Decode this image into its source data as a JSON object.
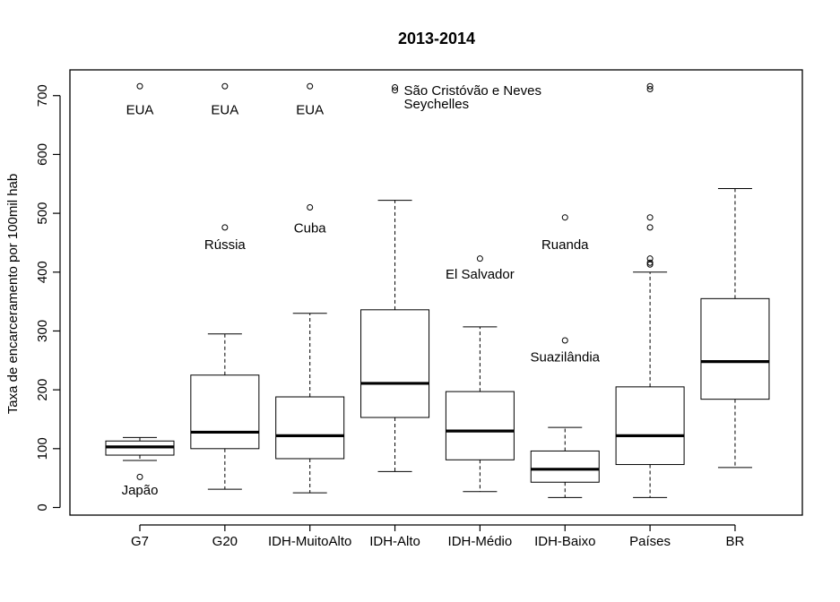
{
  "chart_data": {
    "type": "boxplot",
    "title": "2013-2014",
    "xlabel": "",
    "ylabel": "Taxa de encarceramento por 100mil hab",
    "ylim": [
      -12,
      716
    ],
    "yticks": [
      0,
      100,
      200,
      300,
      400,
      500,
      600,
      700
    ],
    "grid": false,
    "legend": "none",
    "categories": [
      "G7",
      "G20",
      "IDH-MuitoAlto",
      "IDH-Alto",
      "IDH-Médio",
      "IDH-Baixo",
      "Países",
      "BR"
    ],
    "boxes": [
      {
        "category": "G7",
        "whisker_low": 80,
        "q1": 89,
        "median": 103,
        "q3": 113,
        "whisker_high": 119,
        "outliers": [
          716,
          52
        ]
      },
      {
        "category": "G20",
        "whisker_low": 31,
        "q1": 100,
        "median": 128,
        "q3": 225,
        "whisker_high": 295,
        "outliers": [
          716,
          476
        ]
      },
      {
        "category": "IDH-MuitoAlto",
        "whisker_low": 25,
        "q1": 83,
        "median": 122,
        "q3": 188,
        "whisker_high": 330,
        "outliers": [
          716,
          510
        ]
      },
      {
        "category": "IDH-Alto",
        "whisker_low": 61,
        "q1": 153,
        "median": 211,
        "q3": 336,
        "whisker_high": 522,
        "outliers": [
          714,
          709
        ]
      },
      {
        "category": "IDH-Médio",
        "whisker_low": 27,
        "q1": 81,
        "median": 130,
        "q3": 197,
        "whisker_high": 307,
        "outliers": [
          423
        ]
      },
      {
        "category": "IDH-Baixo",
        "whisker_low": 17,
        "q1": 43,
        "median": 65,
        "q3": 96,
        "whisker_high": 136,
        "outliers": [
          493,
          284
        ]
      },
      {
        "category": "Países",
        "whisker_low": 17,
        "q1": 73,
        "median": 122,
        "q3": 205,
        "whisker_high": 400,
        "outliers": [
          716,
          711,
          493,
          476,
          423,
          416,
          413
        ]
      },
      {
        "category": "BR",
        "whisker_low": 68,
        "q1": 184,
        "median": 248,
        "q3": 355,
        "whisker_high": 542,
        "outliers": []
      }
    ],
    "annotations": [
      {
        "text": "EUA",
        "category": "G7",
        "y": 676,
        "anchor": "middle"
      },
      {
        "text": "Japão",
        "category": "G7",
        "y": 30,
        "anchor": "middle"
      },
      {
        "text": "EUA",
        "category": "G20",
        "y": 676,
        "anchor": "middle"
      },
      {
        "text": "Rússia",
        "category": "G20",
        "y": 447,
        "anchor": "middle"
      },
      {
        "text": "EUA",
        "category": "IDH-MuitoAlto",
        "y": 676,
        "anchor": "middle"
      },
      {
        "text": "Cuba",
        "category": "IDH-MuitoAlto",
        "y": 475,
        "anchor": "middle"
      },
      {
        "text": "São Cristóvão e Neves",
        "category": "IDH-Alto",
        "y": 709,
        "anchor": "start"
      },
      {
        "text": "Seychelles",
        "category": "IDH-Alto",
        "y": 686,
        "anchor": "start"
      },
      {
        "text": "El Salvador",
        "category": "IDH-Médio",
        "y": 397,
        "anchor": "middle"
      },
      {
        "text": "Ruanda",
        "category": "IDH-Baixo",
        "y": 447,
        "anchor": "middle"
      },
      {
        "text": "Suazilândia",
        "category": "IDH-Baixo",
        "y": 256,
        "anchor": "middle"
      }
    ]
  }
}
